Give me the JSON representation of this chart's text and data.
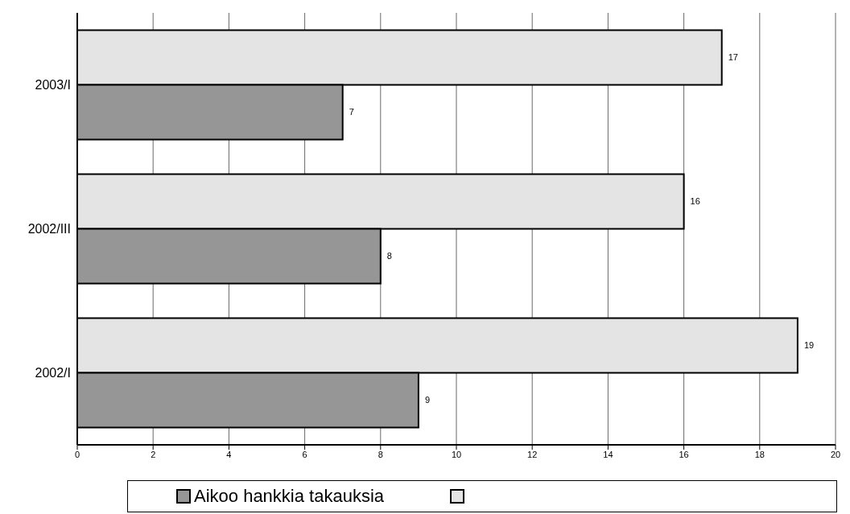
{
  "chart_data": {
    "type": "bar",
    "orientation": "horizontal",
    "categories": [
      "2003/I",
      "2002/III",
      "2002/I"
    ],
    "series": [
      {
        "color": "#e4e4e4",
        "values": [
          17,
          16,
          19
        ]
      },
      {
        "name": "Aikoo hankkia takauksia",
        "color": "#969696",
        "values": [
          7,
          8,
          9
        ]
      }
    ],
    "xlim": [
      0,
      20
    ],
    "xticks": [
      0,
      2,
      4,
      6,
      8,
      10,
      12,
      14,
      16,
      18,
      20
    ],
    "grid": "x",
    "legend": "bottom",
    "data_labels": true
  }
}
